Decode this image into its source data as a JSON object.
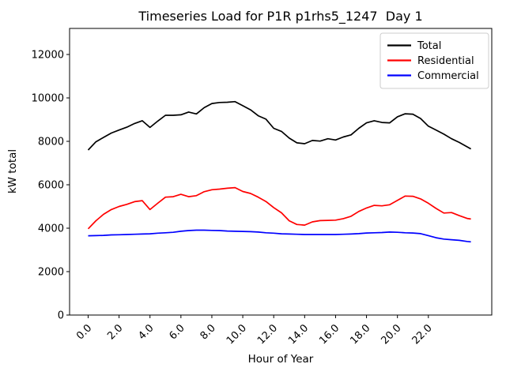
{
  "figure": {
    "title": "Timeseries Load for P1R p1rhs5_1247  Day 1",
    "xlabel": "Hour of Year",
    "ylabel": "kW total",
    "background_color": "#ffffff",
    "spine_color": "#000000",
    "legend": {
      "position": "upper right",
      "border_color": "#cccccc",
      "background_color": "#ffffff",
      "entries": [
        "Total",
        "Residential",
        "Commercial"
      ]
    }
  },
  "chart_data": {
    "type": "line",
    "title": "Timeseries Load for P1R p1rhs5_1247  Day 1",
    "xlabel": "Hour of Year",
    "ylabel": "kW total",
    "grid": false,
    "legend_position": "upper right",
    "xlim": [
      -1.2,
      26.1
    ],
    "ylim": [
      0,
      13200
    ],
    "x_ticks": {
      "values": [
        0,
        2,
        4,
        6,
        8,
        10,
        12,
        14,
        16,
        18,
        20,
        22
      ],
      "labels": [
        "0.0",
        "2.0",
        "4.0",
        "6.0",
        "8.0",
        "10.0",
        "12.0",
        "14.0",
        "16.0",
        "18.0",
        "20.0",
        "22.0"
      ]
    },
    "y_ticks": {
      "values": [
        0,
        2000,
        4000,
        6000,
        8000,
        10000,
        12000
      ],
      "labels": [
        "0",
        "2000",
        "4000",
        "6000",
        "8000",
        "10000",
        "12000"
      ]
    },
    "x": [
      0,
      0.5,
      1,
      1.5,
      2,
      2.5,
      3,
      3.5,
      4,
      4.5,
      5,
      5.5,
      6,
      6.5,
      7,
      7.5,
      8,
      8.5,
      9,
      9.5,
      10,
      10.5,
      11,
      11.5,
      12,
      12.5,
      13,
      13.5,
      14,
      14.5,
      15,
      15.5,
      16,
      16.5,
      17,
      17.5,
      18,
      18.5,
      19,
      19.5,
      20,
      20.5,
      21,
      21.5,
      22,
      22.5,
      23,
      23.5,
      24,
      24.5,
      24.75
    ],
    "series": [
      {
        "name": "Total",
        "color": "#000000",
        "values": [
          7600,
          7980,
          8180,
          8380,
          8520,
          8650,
          8820,
          8950,
          8640,
          8930,
          9200,
          9200,
          9220,
          9350,
          9260,
          9550,
          9740,
          9790,
          9800,
          9830,
          9640,
          9450,
          9180,
          9020,
          8600,
          8460,
          8150,
          7930,
          7890,
          8040,
          8010,
          8120,
          8060,
          8200,
          8300,
          8600,
          8850,
          8950,
          8870,
          8850,
          9130,
          9270,
          9250,
          9050,
          8700,
          8520,
          8330,
          8120,
          7950,
          7750,
          7650
        ]
      },
      {
        "name": "Residential",
        "color": "#ff0000",
        "values": [
          3970,
          4340,
          4640,
          4860,
          5000,
          5100,
          5220,
          5270,
          4860,
          5150,
          5430,
          5450,
          5560,
          5450,
          5500,
          5680,
          5770,
          5800,
          5840,
          5870,
          5690,
          5600,
          5430,
          5230,
          4950,
          4710,
          4340,
          4170,
          4140,
          4290,
          4350,
          4360,
          4370,
          4440,
          4550,
          4770,
          4930,
          5050,
          5030,
          5080,
          5280,
          5480,
          5470,
          5350,
          5150,
          4910,
          4700,
          4720,
          4580,
          4450,
          4420
        ]
      },
      {
        "name": "Commercial",
        "color": "#0000ff",
        "values": [
          3650,
          3660,
          3670,
          3690,
          3700,
          3710,
          3720,
          3730,
          3740,
          3770,
          3790,
          3810,
          3860,
          3890,
          3910,
          3910,
          3900,
          3890,
          3870,
          3860,
          3850,
          3840,
          3820,
          3790,
          3770,
          3740,
          3730,
          3720,
          3710,
          3710,
          3710,
          3710,
          3710,
          3720,
          3730,
          3750,
          3780,
          3790,
          3800,
          3820,
          3810,
          3790,
          3780,
          3750,
          3660,
          3560,
          3500,
          3470,
          3440,
          3390,
          3370
        ]
      }
    ]
  }
}
